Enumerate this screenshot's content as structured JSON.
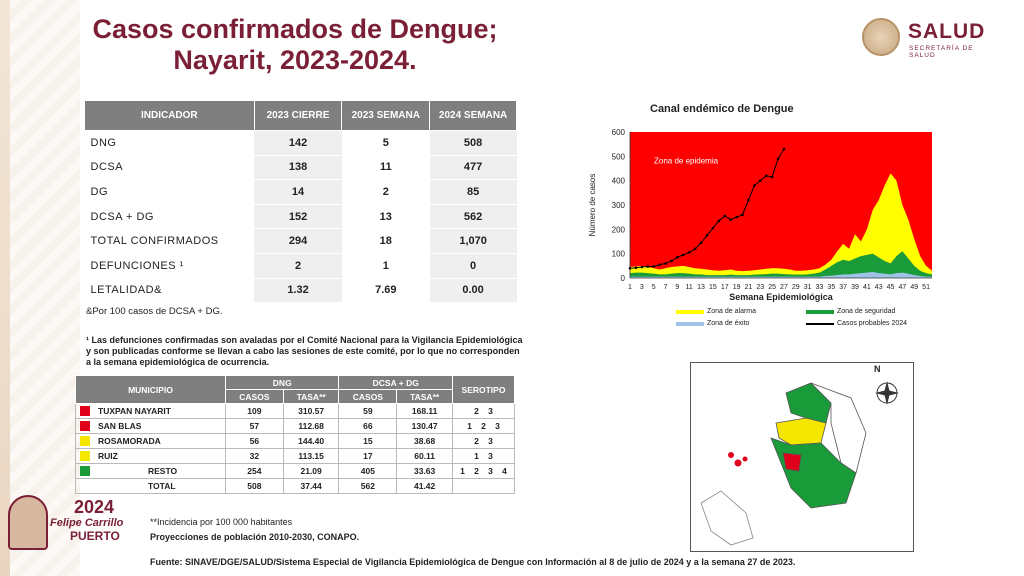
{
  "title": "Casos confirmados de Dengue; Nayarit, 2023-2024.",
  "logo": {
    "name": "SALUD",
    "sub": "SECRETARÍA DE SALUD"
  },
  "indicator_table": {
    "headers": [
      "INDICADOR",
      "2023 CIERRE",
      "2023 SEMANA",
      "2024 SEMANA"
    ],
    "rows": [
      [
        "DNG",
        "142",
        "5",
        "508"
      ],
      [
        "DCSA",
        "138",
        "11",
        "477"
      ],
      [
        "DG",
        "14",
        "2",
        "85"
      ],
      [
        "DCSA + DG",
        "152",
        "13",
        "562"
      ],
      [
        "TOTAL CONFIRMADOS",
        "294",
        "18",
        "1,070"
      ],
      [
        "DEFUNCIONES ¹",
        "2",
        "1",
        "0"
      ],
      [
        "LETALIDAD&",
        "1.32",
        "7.69",
        "0.00"
      ]
    ]
  },
  "note_letalidad": "&Por 100 casos de DCSA + DG.",
  "note_defunciones": "¹ Las defunciones confirmadas son avaladas por el Comité Nacional para la Vigilancia Epidemiológica y son publicadas conforme se llevan a cabo las sesiones de este comité, por lo que no corresponden a la semana epidemiológica de ocurrencia.",
  "municipio_table": {
    "h_municipio": "MUNICIPIO",
    "h_dng": "DNG",
    "h_dcsa": "DCSA + DG",
    "h_serotipo": "SEROTIPO",
    "h_casos": "CASOS",
    "h_tasa": "TASA**",
    "rows": [
      {
        "name": "TUXPAN NAYARIT",
        "color": "#e0001b",
        "dng_casos": "109",
        "dng_tasa": "310.57",
        "dcsa_casos": "59",
        "dcsa_tasa": "168.11",
        "sero": [
          "2",
          "3"
        ]
      },
      {
        "name": "SAN BLAS",
        "color": "#e0001b",
        "dng_casos": "57",
        "dng_tasa": "112.68",
        "dcsa_casos": "66",
        "dcsa_tasa": "130.47",
        "sero": [
          "1",
          "2",
          "3"
        ]
      },
      {
        "name": "ROSAMORADA",
        "color": "#f5e600",
        "dng_casos": "56",
        "dng_tasa": "144.40",
        "dcsa_casos": "15",
        "dcsa_tasa": "38.68",
        "sero": [
          "2",
          "3"
        ]
      },
      {
        "name": "RUIZ",
        "color": "#f5e600",
        "dng_casos": "32",
        "dng_tasa": "113.15",
        "dcsa_casos": "17",
        "dcsa_tasa": "60.11",
        "sero": [
          "1",
          "3"
        ]
      },
      {
        "name": "RESTO",
        "color": "#1a9b3a",
        "dng_casos": "254",
        "dng_tasa": "21.09",
        "dcsa_casos": "405",
        "dcsa_tasa": "33.63",
        "sero": [
          "1",
          "2",
          "3",
          "4"
        ]
      },
      {
        "name": "TOTAL",
        "color": "",
        "dng_casos": "508",
        "dng_tasa": "37.44",
        "dcsa_casos": "562",
        "dcsa_tasa": "41.42",
        "sero": []
      }
    ]
  },
  "badge": {
    "year": "2024",
    "name1": "Felipe Carrillo",
    "name2": "PUERTO"
  },
  "footnote_incidence": "**Incidencia por 100 000 habitantes",
  "footnote_population": "Proyecciones de población 2010-2030,  CONAPO.",
  "source": "Fuente: SINAVE/DGE/SALUD/Sistema Especial de Vigilancia Epidemiológica de Dengue con Información al 8 de julio de 2024 y a la semana 27 de 2023.",
  "map": {
    "north": "N"
  },
  "chart_data": {
    "type": "area",
    "title": "Canal endémico de Dengue",
    "xlabel": "Semana Epidemiológica",
    "ylabel": "Número de casos",
    "ylim": [
      0,
      600
    ],
    "yticks": [
      0,
      100,
      200,
      300,
      400,
      500,
      600
    ],
    "xticks": [
      1,
      3,
      5,
      7,
      9,
      11,
      13,
      15,
      17,
      19,
      21,
      23,
      25,
      27,
      29,
      31,
      33,
      35,
      37,
      39,
      41,
      43,
      45,
      47,
      49,
      51
    ],
    "annotation": "Zona de epidemia",
    "colors": {
      "epidemia": "#ff0000",
      "alarma": "#ffff00",
      "seguridad": "#1a9b3a",
      "exito": "#9ec3e6",
      "casos": "#000000"
    },
    "legend": [
      "Zona de alarma",
      "Zona de seguridad",
      "Zona de éxito",
      "Casos probables 2024"
    ],
    "weeks": [
      1,
      2,
      3,
      4,
      5,
      6,
      7,
      8,
      9,
      10,
      11,
      12,
      13,
      14,
      15,
      16,
      17,
      18,
      19,
      20,
      21,
      22,
      23,
      24,
      25,
      26,
      27,
      28,
      29,
      30,
      31,
      32,
      33,
      34,
      35,
      36,
      37,
      38,
      39,
      40,
      41,
      42,
      43,
      44,
      45,
      46,
      47,
      48,
      49,
      50,
      51,
      52
    ],
    "alarma": [
      45,
      48,
      50,
      45,
      40,
      35,
      40,
      45,
      48,
      50,
      45,
      40,
      38,
      35,
      32,
      30,
      32,
      35,
      30,
      28,
      30,
      32,
      35,
      38,
      40,
      40,
      38,
      35,
      30,
      30,
      32,
      35,
      40,
      55,
      75,
      110,
      140,
      120,
      180,
      150,
      200,
      280,
      320,
      380,
      430,
      400,
      300,
      240,
      160,
      90,
      50,
      30
    ],
    "seguridad": [
      20,
      22,
      22,
      20,
      18,
      15,
      15,
      18,
      20,
      20,
      18,
      15,
      15,
      12,
      12,
      12,
      12,
      14,
      12,
      12,
      12,
      14,
      15,
      16,
      18,
      18,
      16,
      15,
      14,
      14,
      15,
      18,
      22,
      35,
      50,
      65,
      75,
      70,
      80,
      90,
      95,
      100,
      85,
      70,
      60,
      90,
      110,
      80,
      50,
      30,
      20,
      15
    ],
    "exito": [
      5,
      5,
      5,
      5,
      5,
      5,
      5,
      5,
      5,
      5,
      5,
      5,
      5,
      5,
      5,
      5,
      5,
      5,
      5,
      5,
      5,
      5,
      5,
      5,
      5,
      5,
      5,
      5,
      5,
      5,
      5,
      5,
      5,
      8,
      10,
      12,
      15,
      15,
      18,
      20,
      22,
      25,
      20,
      18,
      15,
      20,
      22,
      18,
      12,
      8,
      5,
      5
    ],
    "casos_2024": [
      40,
      42,
      45,
      47,
      48,
      55,
      60,
      70,
      85,
      95,
      105,
      120,
      145,
      175,
      205,
      235,
      255,
      240,
      250,
      260,
      320,
      380,
      400,
      420,
      415,
      490,
      530
    ]
  }
}
